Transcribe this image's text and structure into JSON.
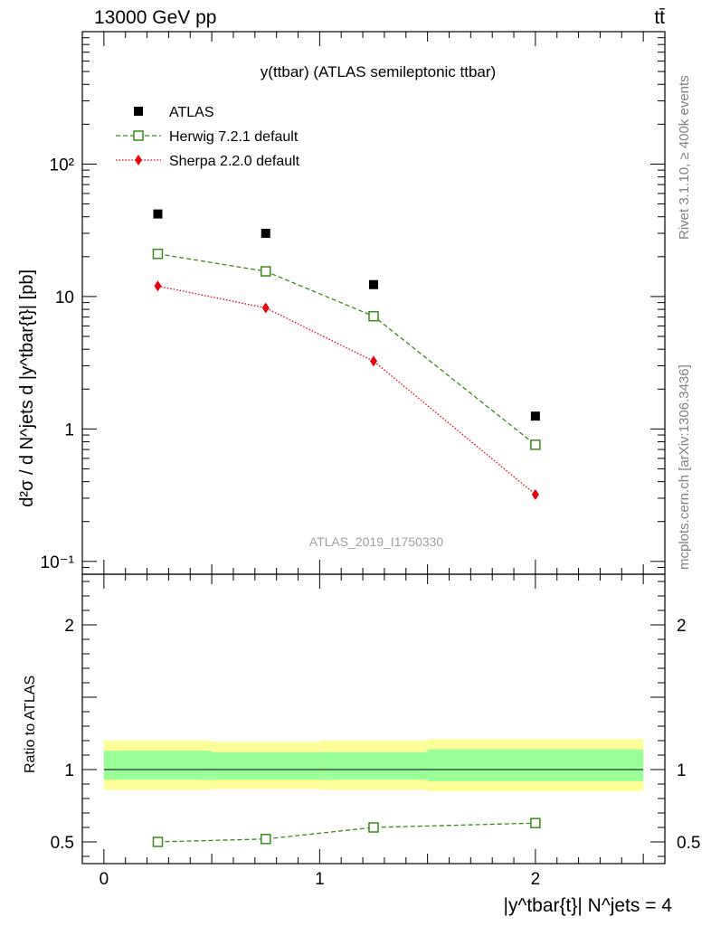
{
  "header": {
    "left_label": "13000 GeV pp",
    "right_label": "tt̄"
  },
  "side_labels": {
    "rivet": "Rivet 3.1.10, ≥ 400k events",
    "mcplots": "mcplots.cern.ch [arXiv:1306.3436]"
  },
  "chart_data": [
    {
      "type": "scatter",
      "title": "y(ttbar) (ATLAS semileptonic ttbar)",
      "watermark": "ATLAS_2019_I1750330",
      "ylabel": "d²σ / d N^jets d |y^tbar{t}| [pb]",
      "yscale": "log",
      "ylim": [
        0.08,
        1000
      ],
      "xlim": [
        -0.1,
        2.6
      ],
      "y_ticks": [
        {
          "value": 0.1,
          "label": "10⁻¹"
        },
        {
          "value": 1,
          "label": "1"
        },
        {
          "value": 10,
          "label": "10"
        },
        {
          "value": 100,
          "label": "10²"
        }
      ],
      "legend_position": "top-left",
      "series": [
        {
          "name": "ATLAS",
          "marker": "filled-square",
          "color": "#000000",
          "x": [
            0.25,
            0.75,
            1.25,
            2.0
          ],
          "y": [
            42,
            30,
            12.3,
            1.25
          ]
        },
        {
          "name": "Herwig 7.2.1 default",
          "marker": "open-square",
          "line": "dashed",
          "color": "#3a8a1a",
          "x": [
            0.25,
            0.75,
            1.25,
            2.0
          ],
          "y": [
            21,
            15.5,
            7.1,
            0.76
          ]
        },
        {
          "name": "Sherpa 2.2.0 default",
          "marker": "filled-diamond",
          "line": "dotted",
          "color": "#e8000b",
          "x": [
            0.25,
            0.75,
            1.25,
            2.0
          ],
          "y": [
            12,
            8.2,
            3.25,
            0.32
          ]
        }
      ]
    },
    {
      "type": "line",
      "ylabel": "Ratio to ATLAS",
      "xlabel": "|y^tbar{t}| N^jets = 4",
      "xlim": [
        -0.1,
        2.6
      ],
      "ylim": [
        0.35,
        2.35
      ],
      "x_ticks": [
        {
          "value": 0,
          "label": "0"
        },
        {
          "value": 1,
          "label": "1"
        },
        {
          "value": 2,
          "label": "2"
        }
      ],
      "y_ticks": [
        {
          "value": 0.5,
          "label": "0.5"
        },
        {
          "value": 1,
          "label": "1"
        },
        {
          "value": 2,
          "label": "2"
        }
      ],
      "bands": [
        {
          "x0": 0.0,
          "x1": 0.5,
          "yellow": [
            0.86,
            1.2
          ],
          "green": [
            0.93,
            1.13
          ]
        },
        {
          "x0": 0.5,
          "x1": 1.0,
          "yellow": [
            0.865,
            1.19
          ],
          "green": [
            0.93,
            1.12
          ]
        },
        {
          "x0": 1.0,
          "x1": 1.5,
          "yellow": [
            0.86,
            1.2
          ],
          "green": [
            0.93,
            1.12
          ]
        },
        {
          "x0": 1.5,
          "x1": 2.5,
          "yellow": [
            0.85,
            1.21
          ],
          "green": [
            0.92,
            1.14
          ]
        }
      ],
      "band_colors": {
        "yellow": "#ffff99",
        "green": "#99ff99"
      },
      "series": [
        {
          "name": "Herwig 7.2.1 default",
          "marker": "open-square",
          "line": "dashed",
          "color": "#3a8a1a",
          "x": [
            0.25,
            0.75,
            1.25,
            2.0
          ],
          "y": [
            0.5,
            0.52,
            0.6,
            0.63
          ]
        }
      ]
    }
  ]
}
